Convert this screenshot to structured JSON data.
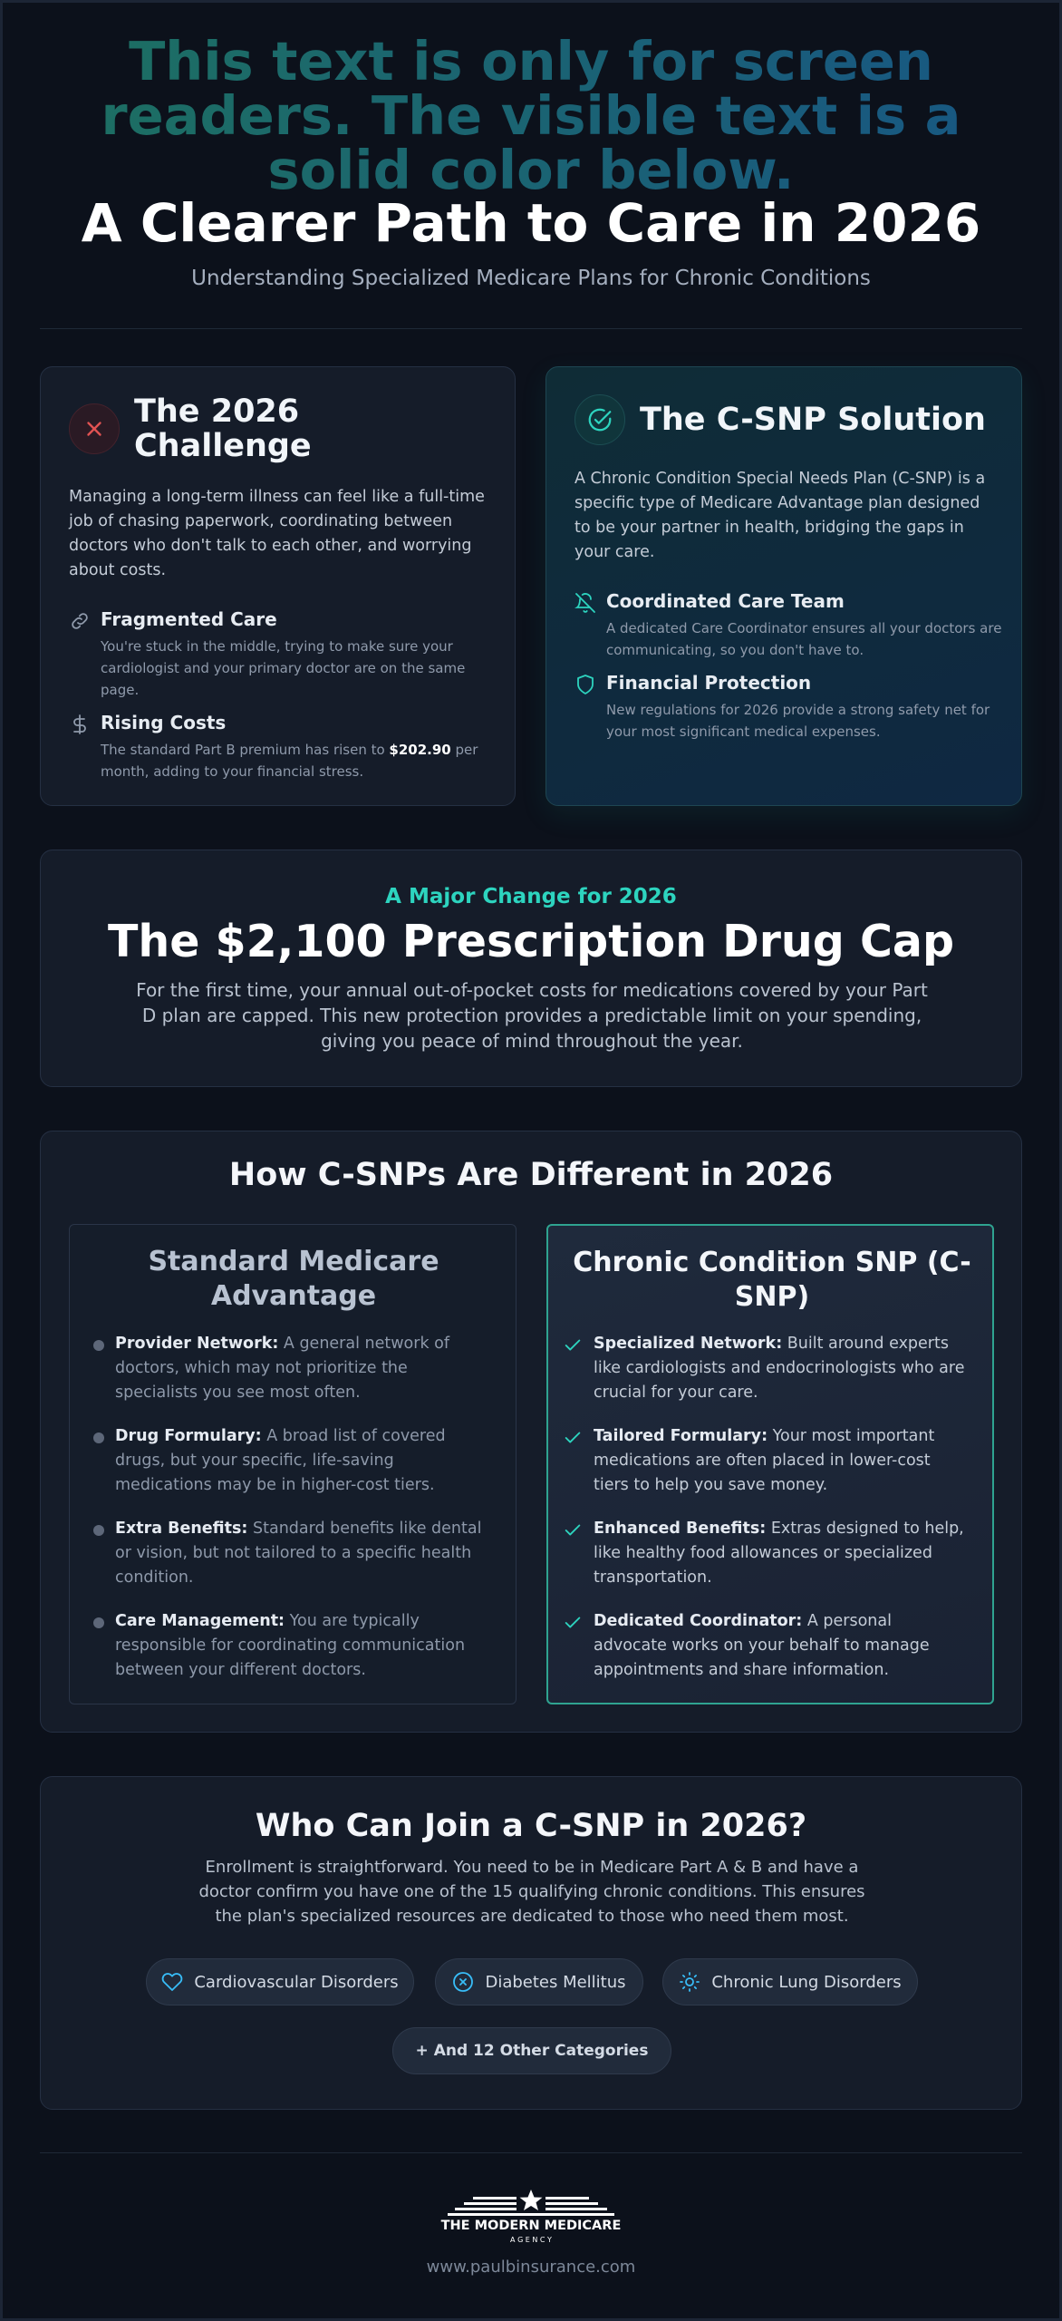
{
  "header": {
    "sr_text": "This text is only for screen readers. The visible text is a solid color below.",
    "title": "A Clearer Path to Care in 2026",
    "subtitle": "Understanding Specialized Medicare Plans for Chronic Conditions"
  },
  "challenge": {
    "title": "The 2026 Challenge",
    "icon": "x-icon",
    "body": "Managing a long-term illness can feel like a full-time job of chasing paperwork, coordinating between doctors who don't talk to each other, and worrying about costs.",
    "features": [
      {
        "icon": "link-icon",
        "title": "Fragmented Care",
        "desc": "You're stuck in the middle, trying to make sure your cardiologist and your primary doctor are on the same page."
      },
      {
        "icon": "dollar-icon",
        "title": "Rising Costs",
        "desc_before": "The standard Part B premium has risen to ",
        "desc_bold": "$202.90",
        "desc_after": " per month, adding to your financial stress."
      }
    ]
  },
  "solution": {
    "title": "The C-SNP Solution",
    "icon": "check-circle-icon",
    "body": "A Chronic Condition Special Needs Plan (C-SNP) is a specific type of Medicare Advantage plan designed to be your partner in health, bridging the gaps in your care.",
    "features": [
      {
        "icon": "bell-icon",
        "title": "Coordinated Care Team",
        "desc": "A dedicated Care Coordinator ensures all your doctors are communicating, so you don't have to."
      },
      {
        "icon": "shield-icon",
        "title": "Financial Protection",
        "desc": "New regulations for 2026 provide a strong safety net for your most significant medical expenses."
      }
    ]
  },
  "drug_cap": {
    "kicker": "A Major Change for 2026",
    "title": "The $2,100 Prescription Drug Cap",
    "body": "For the first time, your annual out-of-pocket costs for medications covered by your Part D plan are capped. This new protection provides a predictable limit on your spending, giving you peace of mind throughout the year."
  },
  "compare": {
    "title": "How C-SNPs Are Different in 2026",
    "standard": {
      "title": "Standard Medicare Advantage",
      "items": [
        {
          "label": "Provider Network:",
          "text": " A general network of doctors, which may not prioritize the specialists you see most often."
        },
        {
          "label": "Drug Formulary:",
          "text": " A broad list of covered drugs, but your specific, life-saving medications may be in higher-cost tiers."
        },
        {
          "label": "Extra Benefits:",
          "text": " Standard benefits like dental or vision, but not tailored to a specific health condition."
        },
        {
          "label": "Care Management:",
          "text": " You are typically responsible for coordinating communication between your different doctors."
        }
      ]
    },
    "snp": {
      "title": "Chronic Condition SNP (C-SNP)",
      "items": [
        {
          "label": "Specialized Network:",
          "text": " Built around experts like cardiologists and endocrinologists who are crucial for your care."
        },
        {
          "label": "Tailored Formulary:",
          "text": " Your most important medications are often placed in lower-cost tiers to help you save money."
        },
        {
          "label": "Enhanced Benefits:",
          "text": " Extras designed to help, like healthy food allowances or specialized transportation."
        },
        {
          "label": "Dedicated Coordinator:",
          "text": " A personal advocate works on your behalf to manage appointments and share information."
        }
      ]
    }
  },
  "join": {
    "title": "Who Can Join a C-SNP in 2026?",
    "body": "Enrollment is straightforward. You need to be in Medicare Part A & B and have a doctor confirm you have one of the 15 qualifying chronic conditions. This ensures the plan's specialized resources are dedicated to those who need them most.",
    "chips": [
      {
        "icon": "heart-icon",
        "label": "Cardiovascular Disorders"
      },
      {
        "icon": "x-circle-icon",
        "label": "Diabetes Mellitus"
      },
      {
        "icon": "sun-icon",
        "label": "Chronic Lung Disorders"
      }
    ],
    "more": "+ And 12 Other Categories"
  },
  "footer": {
    "logo_text": "THE MODERN MEDICARE",
    "logo_sub": "A G E N C Y",
    "url": "www.paulbinsurance.com"
  },
  "colors": {
    "accent": "#2dd4bf",
    "background": "#0c111b",
    "card": "#151c29",
    "danger": "#e05252"
  }
}
